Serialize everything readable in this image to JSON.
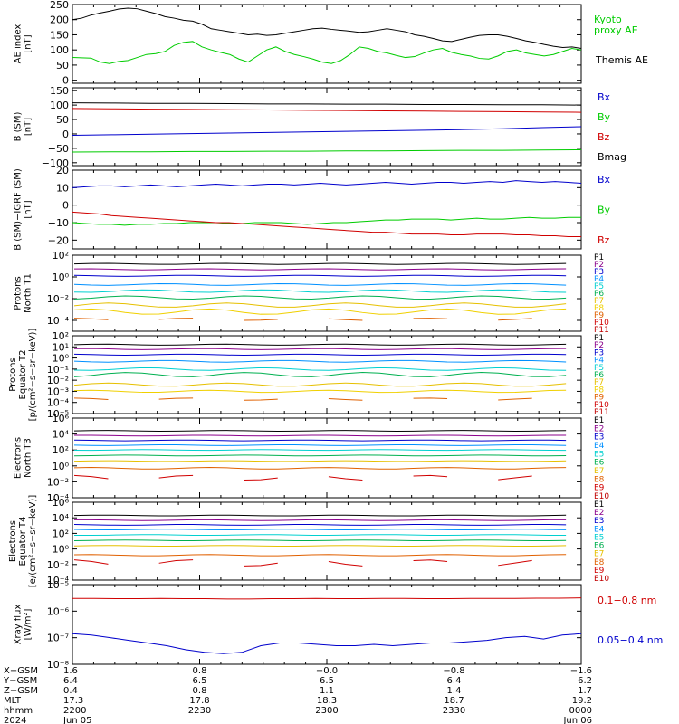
{
  "colors": {
    "black": "#000000",
    "red": "#d00000",
    "green": "#00cc00",
    "blue": "#0000cc",
    "P1": "#000000",
    "P2": "#8b008b",
    "P3": "#0000cc",
    "P4": "#0090ff",
    "P5": "#00d0d0",
    "P6": "#00b050",
    "P7": "#e6c000",
    "P8": "#f0d000",
    "P9": "#e06000",
    "P10": "#d00000",
    "P11": "#c00000"
  },
  "chart_data": [
    {
      "type": "line",
      "id": "ae",
      "ylabel": [
        "AE index",
        "[nT]"
      ],
      "ylim": [
        -10,
        250
      ],
      "yticks": [
        0,
        50,
        100,
        150,
        200,
        250
      ],
      "yticklabels": [
        "0",
        "50",
        "100",
        "150",
        "200",
        "250"
      ],
      "series": [
        {
          "name": "Kyoto proxy AE",
          "label_lines": [
            "Kyoto",
            "proxy AE"
          ],
          "color": "#00cc00",
          "values": [
            75,
            74,
            73,
            60,
            55,
            62,
            65,
            75,
            85,
            88,
            95,
            115,
            125,
            128,
            110,
            100,
            92,
            85,
            70,
            60,
            80,
            100,
            110,
            95,
            85,
            78,
            70,
            60,
            55,
            65,
            85,
            110,
            105,
            95,
            90,
            82,
            75,
            78,
            90,
            100,
            105,
            92,
            85,
            80,
            72,
            70,
            80,
            95,
            100,
            90,
            85,
            80,
            85,
            95,
            105,
            100
          ]
        },
        {
          "name": "Themis AE",
          "label_lines": [
            "Themis AE"
          ],
          "color": "#000000",
          "values": [
            200,
            205,
            215,
            222,
            228,
            235,
            238,
            236,
            228,
            220,
            210,
            205,
            198,
            195,
            185,
            170,
            165,
            160,
            155,
            150,
            152,
            148,
            150,
            155,
            160,
            165,
            170,
            172,
            168,
            165,
            162,
            158,
            160,
            165,
            170,
            165,
            160,
            150,
            145,
            138,
            130,
            128,
            135,
            142,
            148,
            150,
            150,
            145,
            138,
            130,
            125,
            118,
            112,
            108,
            110,
            105
          ]
        }
      ]
    },
    {
      "type": "line",
      "id": "bsm",
      "ylabel": [
        "B (SM)",
        "[nT]"
      ],
      "ylim": [
        -110,
        160
      ],
      "yticks": [
        -100,
        -50,
        0,
        50,
        100,
        150
      ],
      "yticklabels": [
        "−100",
        "−50",
        "0",
        "50",
        "100",
        "150"
      ],
      "series": [
        {
          "name": "Bx",
          "color": "#0000cc",
          "values": [
            -5,
            -3,
            -1,
            1,
            3,
            5,
            7,
            9,
            11,
            13,
            15,
            18,
            22,
            25
          ]
        },
        {
          "name": "By",
          "color": "#00cc00",
          "values": [
            -63,
            -62,
            -62,
            -61,
            -61,
            -60,
            -60,
            -59,
            -59,
            -58,
            -57,
            -57,
            -56,
            -55
          ]
        },
        {
          "name": "Bz",
          "color": "#d00000",
          "values": [
            88,
            87,
            86,
            85,
            84,
            83,
            82,
            81,
            80,
            79,
            78,
            77,
            76,
            75
          ]
        },
        {
          "name": "Bmag",
          "color": "#000000",
          "values": [
            108,
            107,
            106,
            106,
            105,
            104,
            104,
            103,
            103,
            102,
            102,
            101,
            101,
            100
          ]
        }
      ]
    },
    {
      "type": "line",
      "id": "digrf",
      "ylabel": [
        "B (SM)−IGRF (SM)",
        "[nT]"
      ],
      "ylim": [
        -25,
        20
      ],
      "yticks": [
        -20,
        -10,
        0,
        10,
        20
      ],
      "yticklabels": [
        "−20",
        "−10",
        "0",
        "10",
        "20"
      ],
      "series": [
        {
          "name": "Bx",
          "color": "#0000cc",
          "values": [
            10,
            10.5,
            11,
            11,
            10.5,
            11,
            11.5,
            11,
            10.5,
            11,
            11.5,
            12,
            11.5,
            11,
            11.5,
            12,
            12,
            11.5,
            12,
            12.5,
            12,
            11.5,
            12,
            12.5,
            13,
            12.5,
            12,
            12.5,
            13,
            13,
            12.5,
            13,
            13.5,
            13,
            14,
            13.5,
            13,
            13.5,
            13,
            12.5
          ]
        },
        {
          "name": "By",
          "color": "#00cc00",
          "values": [
            -10,
            -10.5,
            -11,
            -11,
            -11.5,
            -11,
            -11,
            -10.5,
            -10.5,
            -10,
            -10,
            -10,
            -10.5,
            -10.5,
            -10,
            -10,
            -10,
            -10.5,
            -11,
            -10.5,
            -10,
            -10,
            -9.5,
            -9,
            -8.5,
            -8.5,
            -8,
            -8,
            -8,
            -8.5,
            -8,
            -7.5,
            -8,
            -8,
            -7.5,
            -7,
            -7.5,
            -7.5,
            -7,
            -7
          ]
        },
        {
          "name": "Bz",
          "color": "#d00000",
          "values": [
            -4,
            -4.5,
            -5,
            -6,
            -6.5,
            -7,
            -7.5,
            -8,
            -8.5,
            -9,
            -9.5,
            -10,
            -10,
            -10.5,
            -11,
            -11.5,
            -12,
            -12.5,
            -13,
            -13.5,
            -14,
            -14.5,
            -15,
            -15.5,
            -15.5,
            -16,
            -16.5,
            -16.5,
            -16.5,
            -17,
            -17,
            -16.5,
            -16.5,
            -16.5,
            -17,
            -17,
            -17.5,
            -17.5,
            -18,
            -18
          ]
        }
      ]
    },
    {
      "type": "line",
      "id": "pn",
      "log": true,
      "ylabel": [
        "Protons",
        "North T1"
      ],
      "ylim": [
        -5,
        2
      ],
      "yticks": [
        -4,
        -2,
        0,
        2
      ],
      "yticklabels": [
        "10⁻⁴",
        "10⁻²",
        "10⁰",
        "10²"
      ],
      "series": [
        {
          "name": "P1",
          "color": "#000000",
          "base": 1.2,
          "amp": 0.05
        },
        {
          "name": "P2",
          "color": "#8b008b",
          "base": 0.7,
          "amp": 0.05
        },
        {
          "name": "P3",
          "color": "#0000cc",
          "base": 0.1,
          "amp": 0.05
        },
        {
          "name": "P4",
          "color": "#0090ff",
          "base": -0.7,
          "amp": 0.08
        },
        {
          "name": "P5",
          "color": "#00d0d0",
          "base": -1.3,
          "amp": 0.12
        },
        {
          "name": "P6",
          "color": "#00b050",
          "base": -1.9,
          "amp": 0.15
        },
        {
          "name": "P7",
          "color": "#e6c000",
          "base": -2.6,
          "amp": 0.2
        },
        {
          "name": "P8",
          "color": "#f0d000",
          "base": -3.2,
          "amp": 0.25
        },
        {
          "name": "P9",
          "color": "#e06000",
          "base": -3.9,
          "amp": 0.1,
          "gappy": true
        },
        {
          "name": "P10",
          "color": "#d00000",
          "base": -99,
          "amp": 0
        },
        {
          "name": "P11",
          "color": "#c00000",
          "base": -99,
          "amp": 0
        }
      ]
    },
    {
      "type": "line",
      "id": "pe",
      "log": true,
      "ylabel": [
        "Protons",
        "Equator T2",
        "[p/(cm²−s−sr−keV)]"
      ],
      "ylim": [
        -5,
        2
      ],
      "yticks": [
        -5,
        -4,
        -3,
        -2,
        -1,
        0,
        1,
        2
      ],
      "yticklabels": [
        "10⁻⁵",
        "10⁻⁴",
        "10⁻³",
        "10⁻²",
        "10⁻¹",
        "10⁰",
        "10¹",
        "10²"
      ],
      "series": [
        {
          "name": "P1",
          "color": "#000000",
          "base": 1.2,
          "amp": 0.05
        },
        {
          "name": "P2",
          "color": "#8b008b",
          "base": 0.8,
          "amp": 0.05
        },
        {
          "name": "P3",
          "color": "#0000cc",
          "base": 0.3,
          "amp": 0.05
        },
        {
          "name": "P4",
          "color": "#0090ff",
          "base": -0.3,
          "amp": 0.08
        },
        {
          "name": "P5",
          "color": "#00d0d0",
          "base": -1.0,
          "amp": 0.12
        },
        {
          "name": "P6",
          "color": "#00b050",
          "base": -1.5,
          "amp": 0.2
        },
        {
          "name": "P7",
          "color": "#e6c000",
          "base": -2.4,
          "amp": 0.15
        },
        {
          "name": "P8",
          "color": "#f0d000",
          "base": -3.0,
          "amp": 0.1
        },
        {
          "name": "P9",
          "color": "#e06000",
          "base": -3.7,
          "amp": 0.1,
          "gappy": true
        },
        {
          "name": "P10",
          "color": "#d00000",
          "base": -99,
          "amp": 0
        },
        {
          "name": "P11",
          "color": "#c00000",
          "base": -99,
          "amp": 0
        }
      ]
    },
    {
      "type": "line",
      "id": "en",
      "log": true,
      "ylabel": [
        "Electrons",
        "North T3"
      ],
      "ylim": [
        -4,
        6
      ],
      "yticks": [
        -4,
        -2,
        0,
        2,
        4,
        6
      ],
      "yticklabels": [
        "10⁻⁴",
        "10⁻²",
        "10⁰",
        "10²",
        "10⁴",
        "10⁶"
      ],
      "series": [
        {
          "name": "E1",
          "color": "#000000",
          "base": 4.4,
          "amp": 0.05
        },
        {
          "name": "E2",
          "color": "#8b008b",
          "base": 3.8,
          "amp": 0.05
        },
        {
          "name": "E3",
          "color": "#0000cc",
          "base": 3.2,
          "amp": 0.05
        },
        {
          "name": "E4",
          "color": "#0090ff",
          "base": 2.6,
          "amp": 0.05
        },
        {
          "name": "E5",
          "color": "#00d0d0",
          "base": 2.0,
          "amp": 0.05
        },
        {
          "name": "E6",
          "color": "#00b050",
          "base": 1.3,
          "amp": 0.05
        },
        {
          "name": "E7",
          "color": "#e6c000",
          "base": 0.6,
          "amp": 0.05
        },
        {
          "name": "E8",
          "color": "#e06000",
          "base": -0.3,
          "amp": 0.1
        },
        {
          "name": "E9",
          "color": "#d00000",
          "base": -1.5,
          "amp": 0.3,
          "gappy": true
        },
        {
          "name": "E10",
          "color": "#c00000",
          "base": -99,
          "amp": 0
        }
      ]
    },
    {
      "type": "line",
      "id": "ee",
      "log": true,
      "ylabel": [
        "Electrons",
        "Equator T4",
        "[e/(cm²−s−sr−keV)]"
      ],
      "ylim": [
        -4,
        6
      ],
      "yticks": [
        -4,
        -2,
        0,
        2,
        4,
        6
      ],
      "yticklabels": [
        "10⁻⁴",
        "10⁻²",
        "10⁰",
        "10²",
        "10⁴",
        "10⁶"
      ],
      "series": [
        {
          "name": "E1",
          "color": "#000000",
          "base": 4.3,
          "amp": 0.05
        },
        {
          "name": "E2",
          "color": "#8b008b",
          "base": 3.7,
          "amp": 0.05
        },
        {
          "name": "E3",
          "color": "#0000cc",
          "base": 3.1,
          "amp": 0.05
        },
        {
          "name": "E4",
          "color": "#0090ff",
          "base": 2.5,
          "amp": 0.05
        },
        {
          "name": "E5",
          "color": "#00d0d0",
          "base": 1.8,
          "amp": 0.05
        },
        {
          "name": "E6",
          "color": "#00b050",
          "base": 1.1,
          "amp": 0.05
        },
        {
          "name": "E7",
          "color": "#e6c000",
          "base": 0.4,
          "amp": 0.05
        },
        {
          "name": "E8",
          "color": "#e06000",
          "base": -0.8,
          "amp": 0.08
        },
        {
          "name": "E9",
          "color": "#d00000",
          "base": -1.8,
          "amp": 0.4,
          "gappy": true
        },
        {
          "name": "E10",
          "color": "#c00000",
          "base": -99,
          "amp": 0
        }
      ]
    },
    {
      "type": "line",
      "id": "xray",
      "log": true,
      "ylabel": [
        "Xray flux",
        "[W/m²]"
      ],
      "ylim": [
        -8,
        -5
      ],
      "yticks": [
        -8,
        -7,
        -6,
        -5
      ],
      "yticklabels": [
        "10⁻⁸",
        "10⁻⁷",
        "10⁻⁶",
        "10⁻⁵"
      ],
      "series": [
        {
          "name": "0.1−0.8 nm",
          "color": "#d00000",
          "values": [
            -5.52,
            -5.52,
            -5.53,
            -5.53,
            -5.52,
            -5.53,
            -5.53,
            -5.54,
            -5.54,
            -5.53,
            -5.53,
            -5.52,
            -5.53,
            -5.53,
            -5.52,
            -5.52,
            -5.53,
            -5.53,
            -5.52,
            -5.52,
            -5.52,
            -5.51,
            -5.51,
            -5.5
          ]
        },
        {
          "name": "0.05−0.4 nm",
          "color": "#0000cc",
          "values": [
            -6.85,
            -6.9,
            -7.0,
            -7.1,
            -7.2,
            -7.3,
            -7.45,
            -7.55,
            -7.6,
            -7.55,
            -7.3,
            -7.2,
            -7.2,
            -7.25,
            -7.3,
            -7.3,
            -7.25,
            -7.3,
            -7.25,
            -7.2,
            -7.2,
            -7.15,
            -7.1,
            -7.0,
            -6.95,
            -7.05,
            -6.9,
            -6.85
          ]
        }
      ]
    }
  ],
  "xaxis": {
    "row_labels": [
      "X−GSM",
      "Y−GSM",
      "Z−GSM",
      "MLT",
      "hhmm",
      "2024"
    ],
    "ticks": [
      {
        "vals": [
          "1.6",
          "6.4",
          "0.4",
          "17.3",
          "2200",
          "Jun 05"
        ]
      },
      {
        "vals": [
          "0.8",
          "6.5",
          "0.8",
          "17.8",
          "2230",
          ""
        ]
      },
      {
        "vals": [
          "−0.0",
          "6.5",
          "1.1",
          "18.3",
          "2300",
          ""
        ]
      },
      {
        "vals": [
          "−0.8",
          "6.4",
          "1.4",
          "18.7",
          "2330",
          ""
        ]
      },
      {
        "vals": [
          "−1.6",
          "6.2",
          "1.7",
          "19.2",
          "0000",
          "Jun 06"
        ]
      }
    ]
  }
}
